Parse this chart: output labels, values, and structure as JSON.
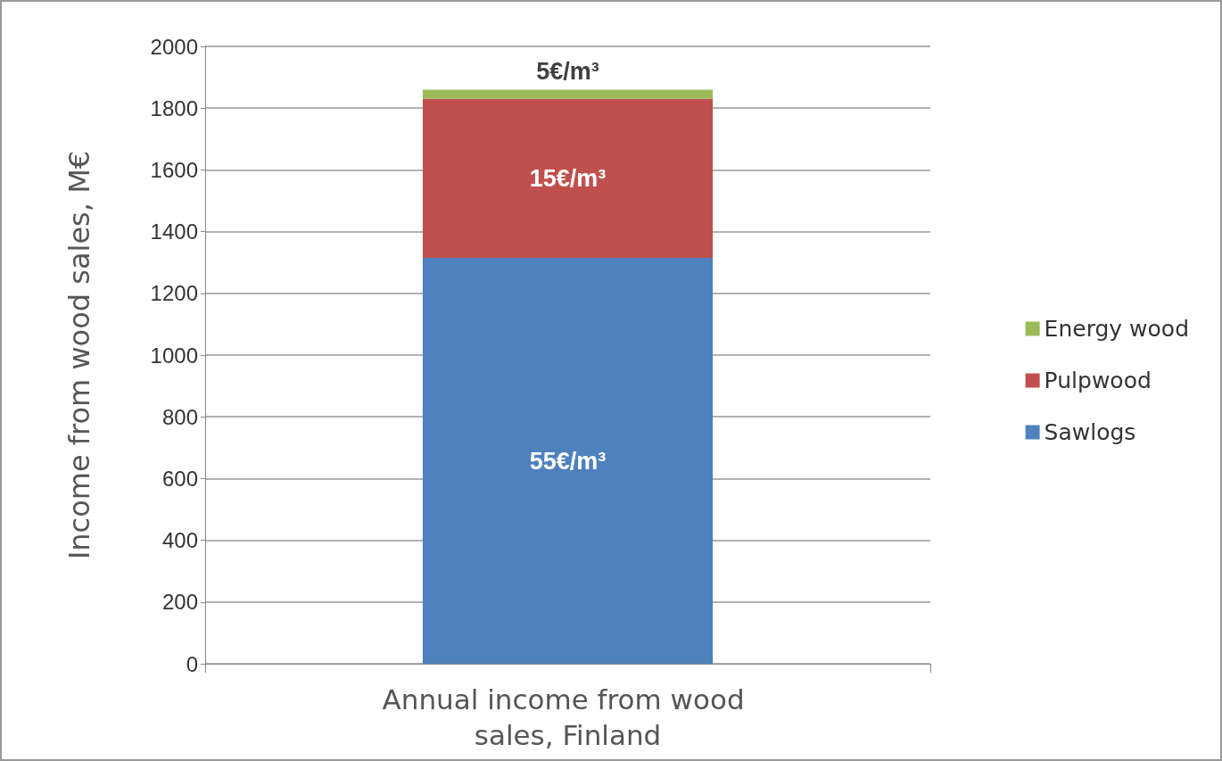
{
  "chart_data": {
    "type": "bar",
    "stacked": true,
    "ylabel": "Income from wood sales, M€",
    "categories": [
      "Annual income from wood sales, Finland"
    ],
    "series": [
      {
        "name": "Sawlogs",
        "color": "#4f81bd",
        "values": [
          1315
        ]
      },
      {
        "name": "Pulpwood",
        "color": "#c0504d",
        "values": [
          515
        ]
      },
      {
        "name": "Energy wood",
        "color": "#9bbb59",
        "values": [
          30
        ]
      }
    ],
    "ylim": [
      0,
      2000
    ],
    "yticks": [
      0,
      200,
      400,
      600,
      800,
      1000,
      1200,
      1400,
      1600,
      1800,
      2000
    ],
    "grid": "y",
    "legend": "right",
    "annotations": [
      "55€/m³",
      "15€/m³",
      "5€/m³"
    ]
  }
}
